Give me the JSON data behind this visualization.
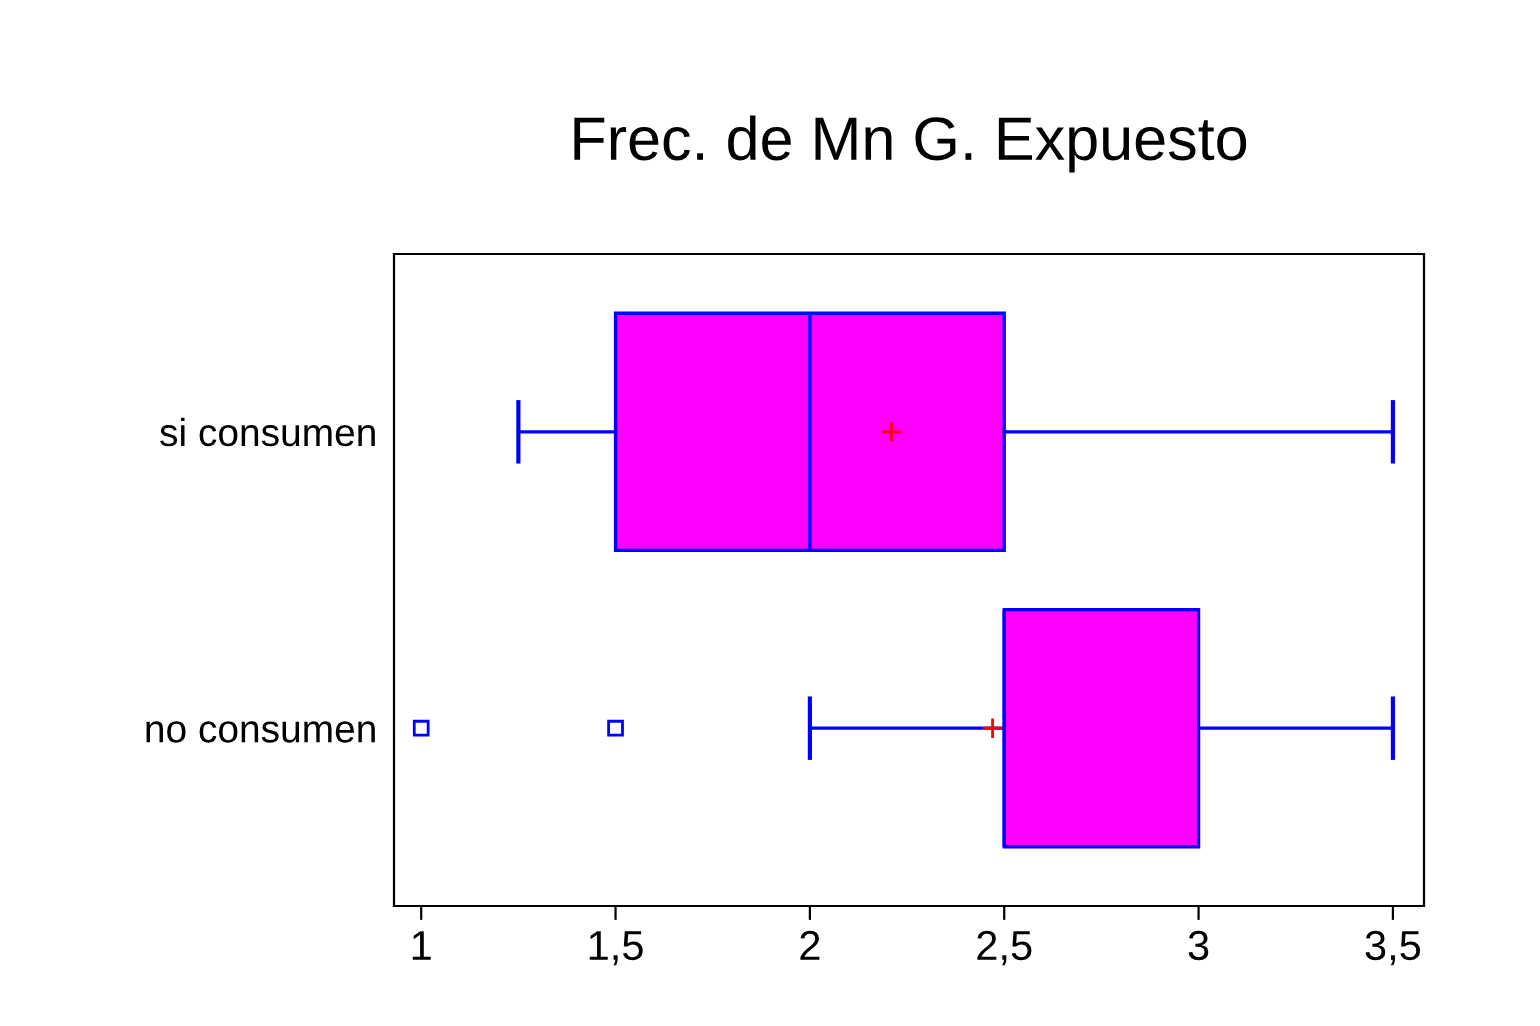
{
  "chart_data": {
    "type": "box",
    "title": "Frec. de Mn G. Expuesto",
    "orientation": "horizontal",
    "categories": [
      "si consumen",
      "no consumen"
    ],
    "boxes": [
      {
        "low": 1.25,
        "q1": 1.5,
        "median": 2,
        "q3": 2.5,
        "high": 3.5,
        "mean": 2.21
      },
      {
        "low": 2,
        "q1": 2.5,
        "median": 2.5,
        "q3": 3,
        "high": 3.5,
        "mean": 2.47,
        "outliers": [
          1,
          1.5
        ]
      }
    ],
    "color": "#ff00ff",
    "xlim": [
      0.93,
      3.58
    ],
    "xticks": [
      1,
      {
        "value": 1.5,
        "label": "1,5"
      },
      2,
      {
        "value": 2.5,
        "label": "2,5"
      },
      3,
      {
        "value": 3.5,
        "label": "3,5"
      }
    ],
    "grid": false,
    "legend": false
  }
}
